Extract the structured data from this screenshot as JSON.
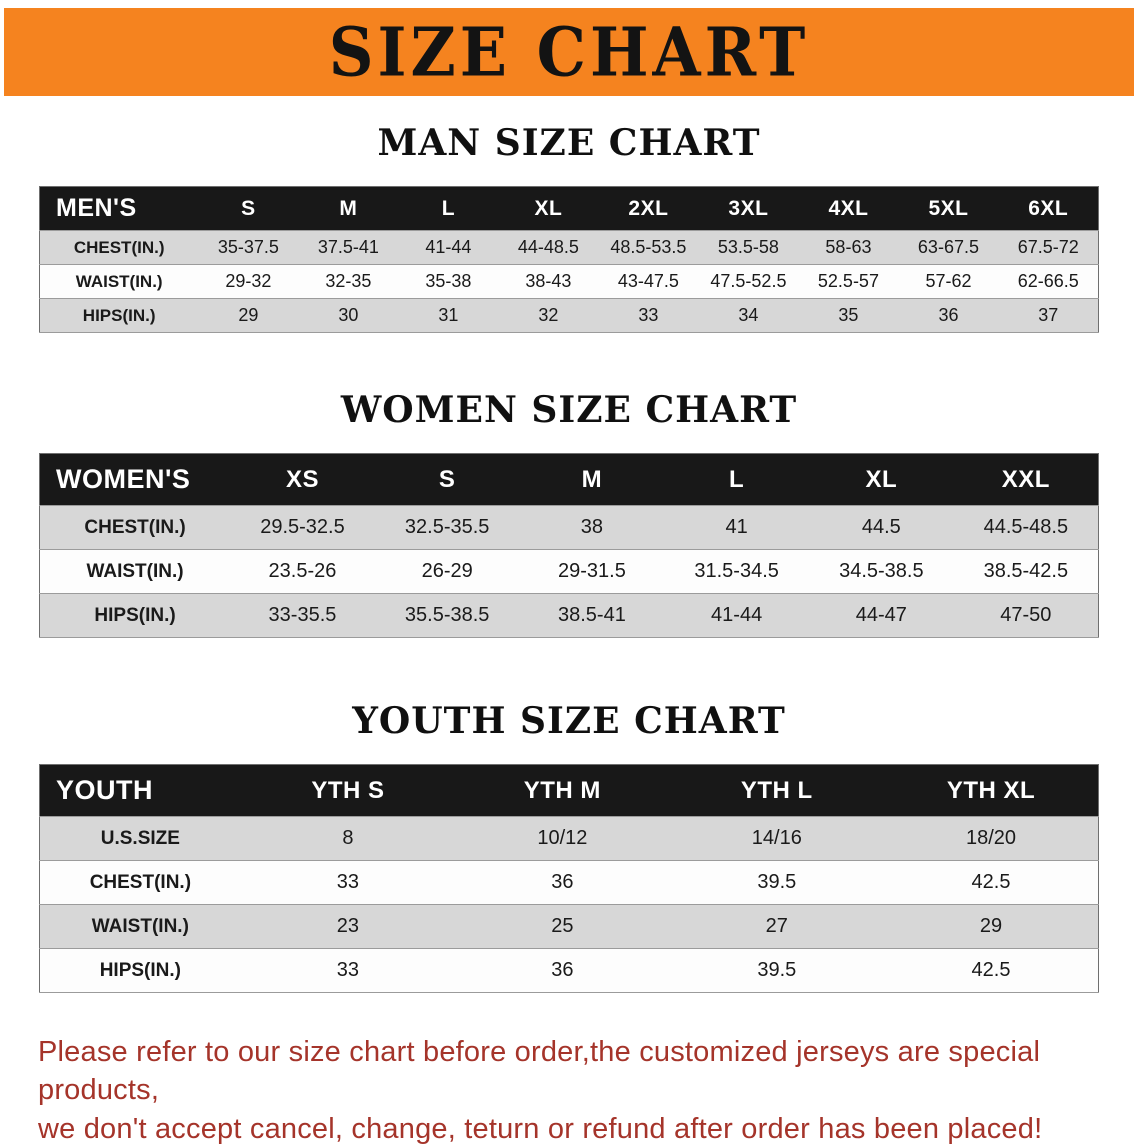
{
  "banner": {
    "title": "SIZE CHART",
    "bg_color": "#f5831f"
  },
  "sections": [
    {
      "heading": "MAN SIZE CHART",
      "table": {
        "header_label": "MEN'S",
        "columns": [
          "S",
          "M",
          "L",
          "XL",
          "2XL",
          "3XL",
          "4XL",
          "5XL",
          "6XL"
        ],
        "rows": [
          {
            "label": "CHEST(IN.)",
            "values": [
              "35-37.5",
              "37.5-41",
              "41-44",
              "44-48.5",
              "48.5-53.5",
              "53.5-58",
              "58-63",
              "63-67.5",
              "67.5-72"
            ]
          },
          {
            "label": "WAIST(IN.)",
            "values": [
              "29-32",
              "32-35",
              "35-38",
              "38-43",
              "43-47.5",
              "47.5-52.5",
              "52.5-57",
              "57-62",
              "62-66.5"
            ]
          },
          {
            "label": "HIPS(IN.)",
            "values": [
              "29",
              "30",
              "31",
              "32",
              "33",
              "34",
              "35",
              "36",
              "37"
            ]
          }
        ]
      }
    },
    {
      "heading": "WOMEN SIZE CHART",
      "table": {
        "header_label": "WOMEN'S",
        "columns": [
          "XS",
          "S",
          "M",
          "L",
          "XL",
          "XXL"
        ],
        "rows": [
          {
            "label": "CHEST(IN.)",
            "values": [
              "29.5-32.5",
              "32.5-35.5",
              "38",
              "41",
              "44.5",
              "44.5-48.5"
            ]
          },
          {
            "label": "WAIST(IN.)",
            "values": [
              "23.5-26",
              "26-29",
              "29-31.5",
              "31.5-34.5",
              "34.5-38.5",
              "38.5-42.5"
            ]
          },
          {
            "label": "HIPS(IN.)",
            "values": [
              "33-35.5",
              "35.5-38.5",
              "38.5-41",
              "41-44",
              "44-47",
              "47-50"
            ]
          }
        ]
      }
    },
    {
      "heading": "YOUTH SIZE CHART",
      "table": {
        "header_label": "YOUTH",
        "columns": [
          "YTH S",
          "YTH M",
          "YTH L",
          "YTH XL"
        ],
        "rows": [
          {
            "label": "U.S.SIZE",
            "values": [
              "8",
              "10/12",
              "14/16",
              "18/20"
            ]
          },
          {
            "label": "CHEST(IN.)",
            "values": [
              "33",
              "36",
              "39.5",
              "42.5"
            ]
          },
          {
            "label": "WAIST(IN.)",
            "values": [
              "23",
              "25",
              "27",
              "29"
            ]
          },
          {
            "label": "HIPS(IN.)",
            "values": [
              "33",
              "36",
              "39.5",
              "42.5"
            ]
          }
        ]
      }
    }
  ],
  "disclaimer": {
    "line1": "Please refer to our size chart before order,the customized jerseys are special products,",
    "line2": "we don't accept cancel, change, teturn or refund after order has been placed!",
    "color": "#a5342a"
  }
}
